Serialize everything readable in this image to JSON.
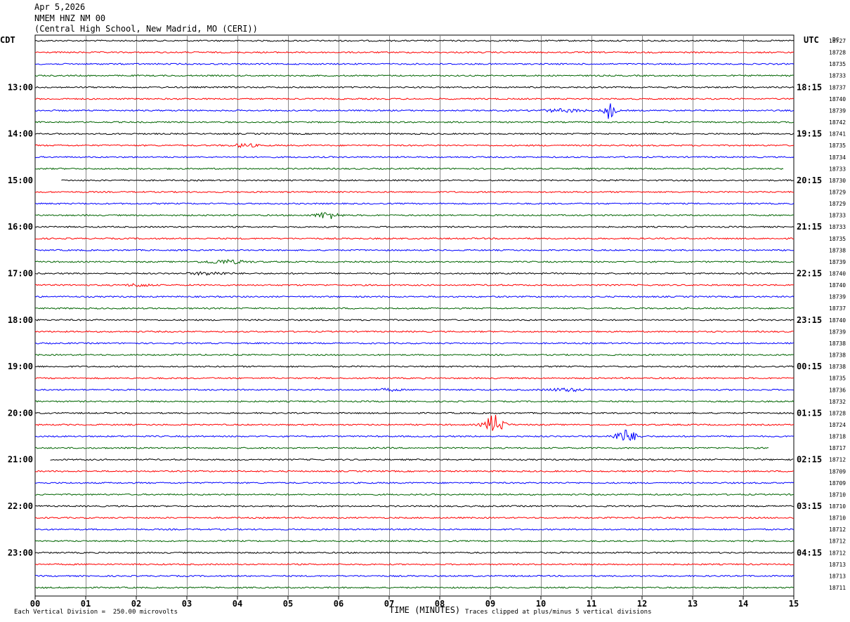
{
  "header": {
    "date": "Apr 5,2026",
    "station": "NMEM HNZ NM 00",
    "location": "(Central High School, New Madrid, MO (CERI))"
  },
  "chart_data": {
    "type": "line",
    "title": "",
    "left_axis_label": "CDT",
    "right_axis_label": "UTC",
    "right_column_label": "DC",
    "xlabel": "TIME (MINUTES)",
    "xlim": [
      0,
      15
    ],
    "x_tick_labels": [
      "00",
      "01",
      "02",
      "03",
      "04",
      "05",
      "06",
      "07",
      "08",
      "09",
      "10",
      "11",
      "12",
      "13",
      "14",
      "15"
    ],
    "grid": true,
    "trace_colors": [
      "#000000",
      "#ff0000",
      "#0000ff",
      "#006400"
    ],
    "left_hour_labels": [
      {
        "trace": 4,
        "label": "13:00"
      },
      {
        "trace": 8,
        "label": "14:00"
      },
      {
        "trace": 12,
        "label": "15:00"
      },
      {
        "trace": 16,
        "label": "16:00"
      },
      {
        "trace": 20,
        "label": "17:00"
      },
      {
        "trace": 24,
        "label": "18:00"
      },
      {
        "trace": 28,
        "label": "19:00"
      },
      {
        "trace": 32,
        "label": "20:00"
      },
      {
        "trace": 36,
        "label": "21:00"
      },
      {
        "trace": 40,
        "label": "22:00"
      },
      {
        "trace": 44,
        "label": "23:00"
      }
    ],
    "right_hour_labels": [
      {
        "trace": 4,
        "label": "18:15"
      },
      {
        "trace": 8,
        "label": "19:15"
      },
      {
        "trace": 12,
        "label": "20:15"
      },
      {
        "trace": 16,
        "label": "21:15"
      },
      {
        "trace": 20,
        "label": "22:15"
      },
      {
        "trace": 24,
        "label": "23:15"
      },
      {
        "trace": 28,
        "label": "00:15"
      },
      {
        "trace": 32,
        "label": "01:15"
      },
      {
        "trace": 36,
        "label": "02:15"
      },
      {
        "trace": 40,
        "label": "03:15"
      },
      {
        "trace": 44,
        "label": "04:15"
      }
    ],
    "dc_offsets": [
      "18727",
      "18728",
      "18735",
      "18733",
      "18737",
      "18740",
      "18739",
      "18742",
      "18741",
      "18735",
      "18734",
      "18733",
      "18730",
      "18729",
      "18729",
      "18733",
      "18733",
      "18735",
      "18738",
      "18739",
      "18740",
      "18740",
      "18739",
      "18737",
      "18740",
      "18739",
      "18738",
      "18738",
      "18738",
      "18735",
      "18736",
      "18732",
      "18728",
      "18724",
      "18718",
      "18717",
      "18712",
      "18709",
      "18709",
      "18710",
      "18710",
      "18710",
      "18712",
      "18712",
      "18712",
      "18713",
      "18713",
      "18711"
    ],
    "trace_spans": [
      {
        "trace": 12,
        "start": 0.52,
        "end": 15
      },
      {
        "trace": 11,
        "start": 0,
        "end": 14.8
      },
      {
        "trace": 35,
        "start": 0,
        "end": 14.5
      },
      {
        "trace": 36,
        "start": 0.3,
        "end": 15
      }
    ],
    "events": [
      {
        "trace": 6,
        "time": 11.35,
        "amplitude": 12,
        "duration": 0.15
      },
      {
        "trace": 6,
        "time": 10.45,
        "amplitude": 2,
        "duration": 0.6
      },
      {
        "trace": 9,
        "time": 4.15,
        "amplitude": 2.5,
        "duration": 0.3
      },
      {
        "trace": 15,
        "time": 5.78,
        "amplitude": 5,
        "duration": 0.3
      },
      {
        "trace": 19,
        "time": 3.75,
        "amplitude": 2.5,
        "duration": 0.6
      },
      {
        "trace": 20,
        "time": 3.45,
        "amplitude": 2,
        "duration": 0.5
      },
      {
        "trace": 21,
        "time": 2.05,
        "amplitude": 2,
        "duration": 0.3
      },
      {
        "trace": 30,
        "time": 7.0,
        "amplitude": 1.5,
        "duration": 0.3
      },
      {
        "trace": 30,
        "time": 10.5,
        "amplitude": 2,
        "duration": 0.5
      },
      {
        "trace": 33,
        "time": 9.08,
        "amplitude": 14,
        "duration": 0.25
      },
      {
        "trace": 34,
        "time": 11.68,
        "amplitude": 9,
        "duration": 0.3
      }
    ]
  },
  "footer": {
    "scale_note": "Each Vertical Division =  250.00 microvolts",
    "clip_note": "Traces clipped at plus/minus 5 vertical divisions"
  }
}
